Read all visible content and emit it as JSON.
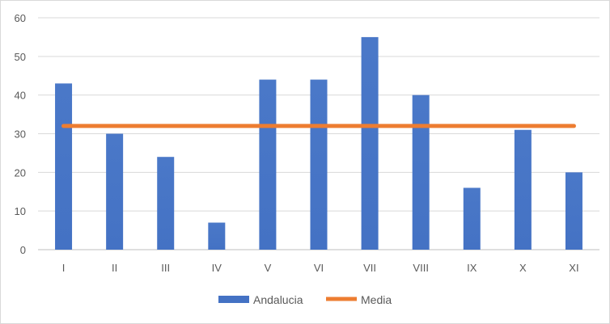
{
  "chart_data": {
    "type": "bar",
    "categories": [
      "I",
      "II",
      "III",
      "IV",
      "V",
      "VI",
      "VII",
      "VIII",
      "IX",
      "X",
      "XI"
    ],
    "series": [
      {
        "name": "Andalucia",
        "type": "bar",
        "color": "#4472c4",
        "values": [
          43,
          30,
          24,
          7,
          44,
          44,
          55,
          40,
          16,
          31,
          20
        ]
      },
      {
        "name": "Media",
        "type": "line",
        "color": "#ed7d31",
        "values": [
          32,
          32,
          32,
          32,
          32,
          32,
          32,
          32,
          32,
          32,
          32
        ]
      }
    ],
    "yticks": [
      "0",
      "10",
      "20",
      "30",
      "40",
      "50",
      "60"
    ],
    "ylim": [
      0,
      60
    ],
    "grid": true,
    "legend_position": "bottom"
  }
}
